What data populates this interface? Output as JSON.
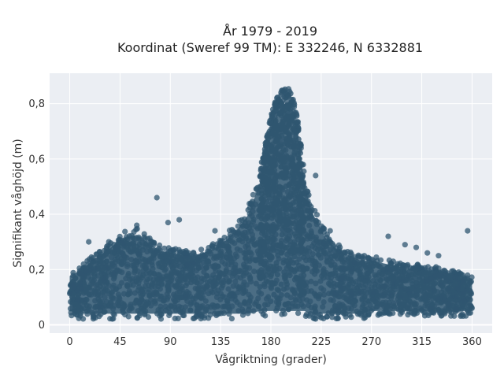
{
  "chart_data": {
    "type": "scatter",
    "title": [
      "År 1979 - 2019",
      "Koordinat (Sweref 99 TM): E 332246, N 6332881"
    ],
    "xlabel": "Vågriktning (grader)",
    "ylabel": "Signifikant våghöjd (m)",
    "xlim": [
      -18,
      378
    ],
    "ylim": [
      -0.03,
      0.91
    ],
    "x_ticks": [
      0,
      45,
      90,
      135,
      180,
      225,
      270,
      315,
      360
    ],
    "x_tick_labels": [
      "0",
      "45",
      "90",
      "135",
      "180",
      "225",
      "270",
      "315",
      "360"
    ],
    "y_ticks": [
      0,
      0.2,
      0.4,
      0.6,
      0.8
    ],
    "y_tick_labels": [
      "0",
      "0,2",
      "0,4",
      "0,6",
      "0,8"
    ],
    "grid": true,
    "background": "#ebeef3",
    "marker_color": "#2f5670",
    "series": [
      {
        "x": [
          0,
          10,
          20,
          30,
          40,
          50,
          60,
          70,
          80,
          90,
          100,
          110,
          120,
          130,
          140,
          150,
          160,
          170,
          175,
          180,
          185,
          190,
          195,
          200,
          205,
          210,
          215,
          220,
          225,
          230,
          240,
          250,
          260,
          270,
          280,
          290,
          300,
          310,
          320,
          330,
          340,
          350,
          360
        ],
        "y_max": [
          0.19,
          0.21,
          0.25,
          0.28,
          0.31,
          0.34,
          0.35,
          0.32,
          0.29,
          0.28,
          0.27,
          0.27,
          0.28,
          0.3,
          0.33,
          0.37,
          0.43,
          0.55,
          0.66,
          0.76,
          0.82,
          0.85,
          0.86,
          0.83,
          0.72,
          0.55,
          0.46,
          0.41,
          0.37,
          0.33,
          0.29,
          0.27,
          0.25,
          0.25,
          0.24,
          0.23,
          0.22,
          0.22,
          0.21,
          0.21,
          0.2,
          0.19,
          0.18
        ],
        "y_min": [
          0.03,
          0.02,
          0.02,
          0.02,
          0.02,
          0.02,
          0.02,
          0.02,
          0.02,
          0.02,
          0.02,
          0.02,
          0.02,
          0.02,
          0.02,
          0.02,
          0.02,
          0.03,
          0.03,
          0.03,
          0.03,
          0.03,
          0.03,
          0.03,
          0.03,
          0.03,
          0.02,
          0.02,
          0.02,
          0.02,
          0.02,
          0.02,
          0.02,
          0.03,
          0.03,
          0.03,
          0.03,
          0.03,
          0.03,
          0.03,
          0.03,
          0.03,
          0.03
        ]
      }
    ],
    "outliers": [
      {
        "x": 78,
        "y": 0.46
      },
      {
        "x": 98,
        "y": 0.38
      },
      {
        "x": 88,
        "y": 0.37
      },
      {
        "x": 17,
        "y": 0.3
      },
      {
        "x": 285,
        "y": 0.32
      },
      {
        "x": 233,
        "y": 0.34
      },
      {
        "x": 356,
        "y": 0.34
      },
      {
        "x": 220,
        "y": 0.54
      },
      {
        "x": 330,
        "y": 0.25
      },
      {
        "x": 300,
        "y": 0.29
      },
      {
        "x": 310,
        "y": 0.28
      },
      {
        "x": 320,
        "y": 0.26
      },
      {
        "x": 35,
        "y": 0.3
      },
      {
        "x": 60,
        "y": 0.36
      },
      {
        "x": 130,
        "y": 0.34
      }
    ]
  }
}
